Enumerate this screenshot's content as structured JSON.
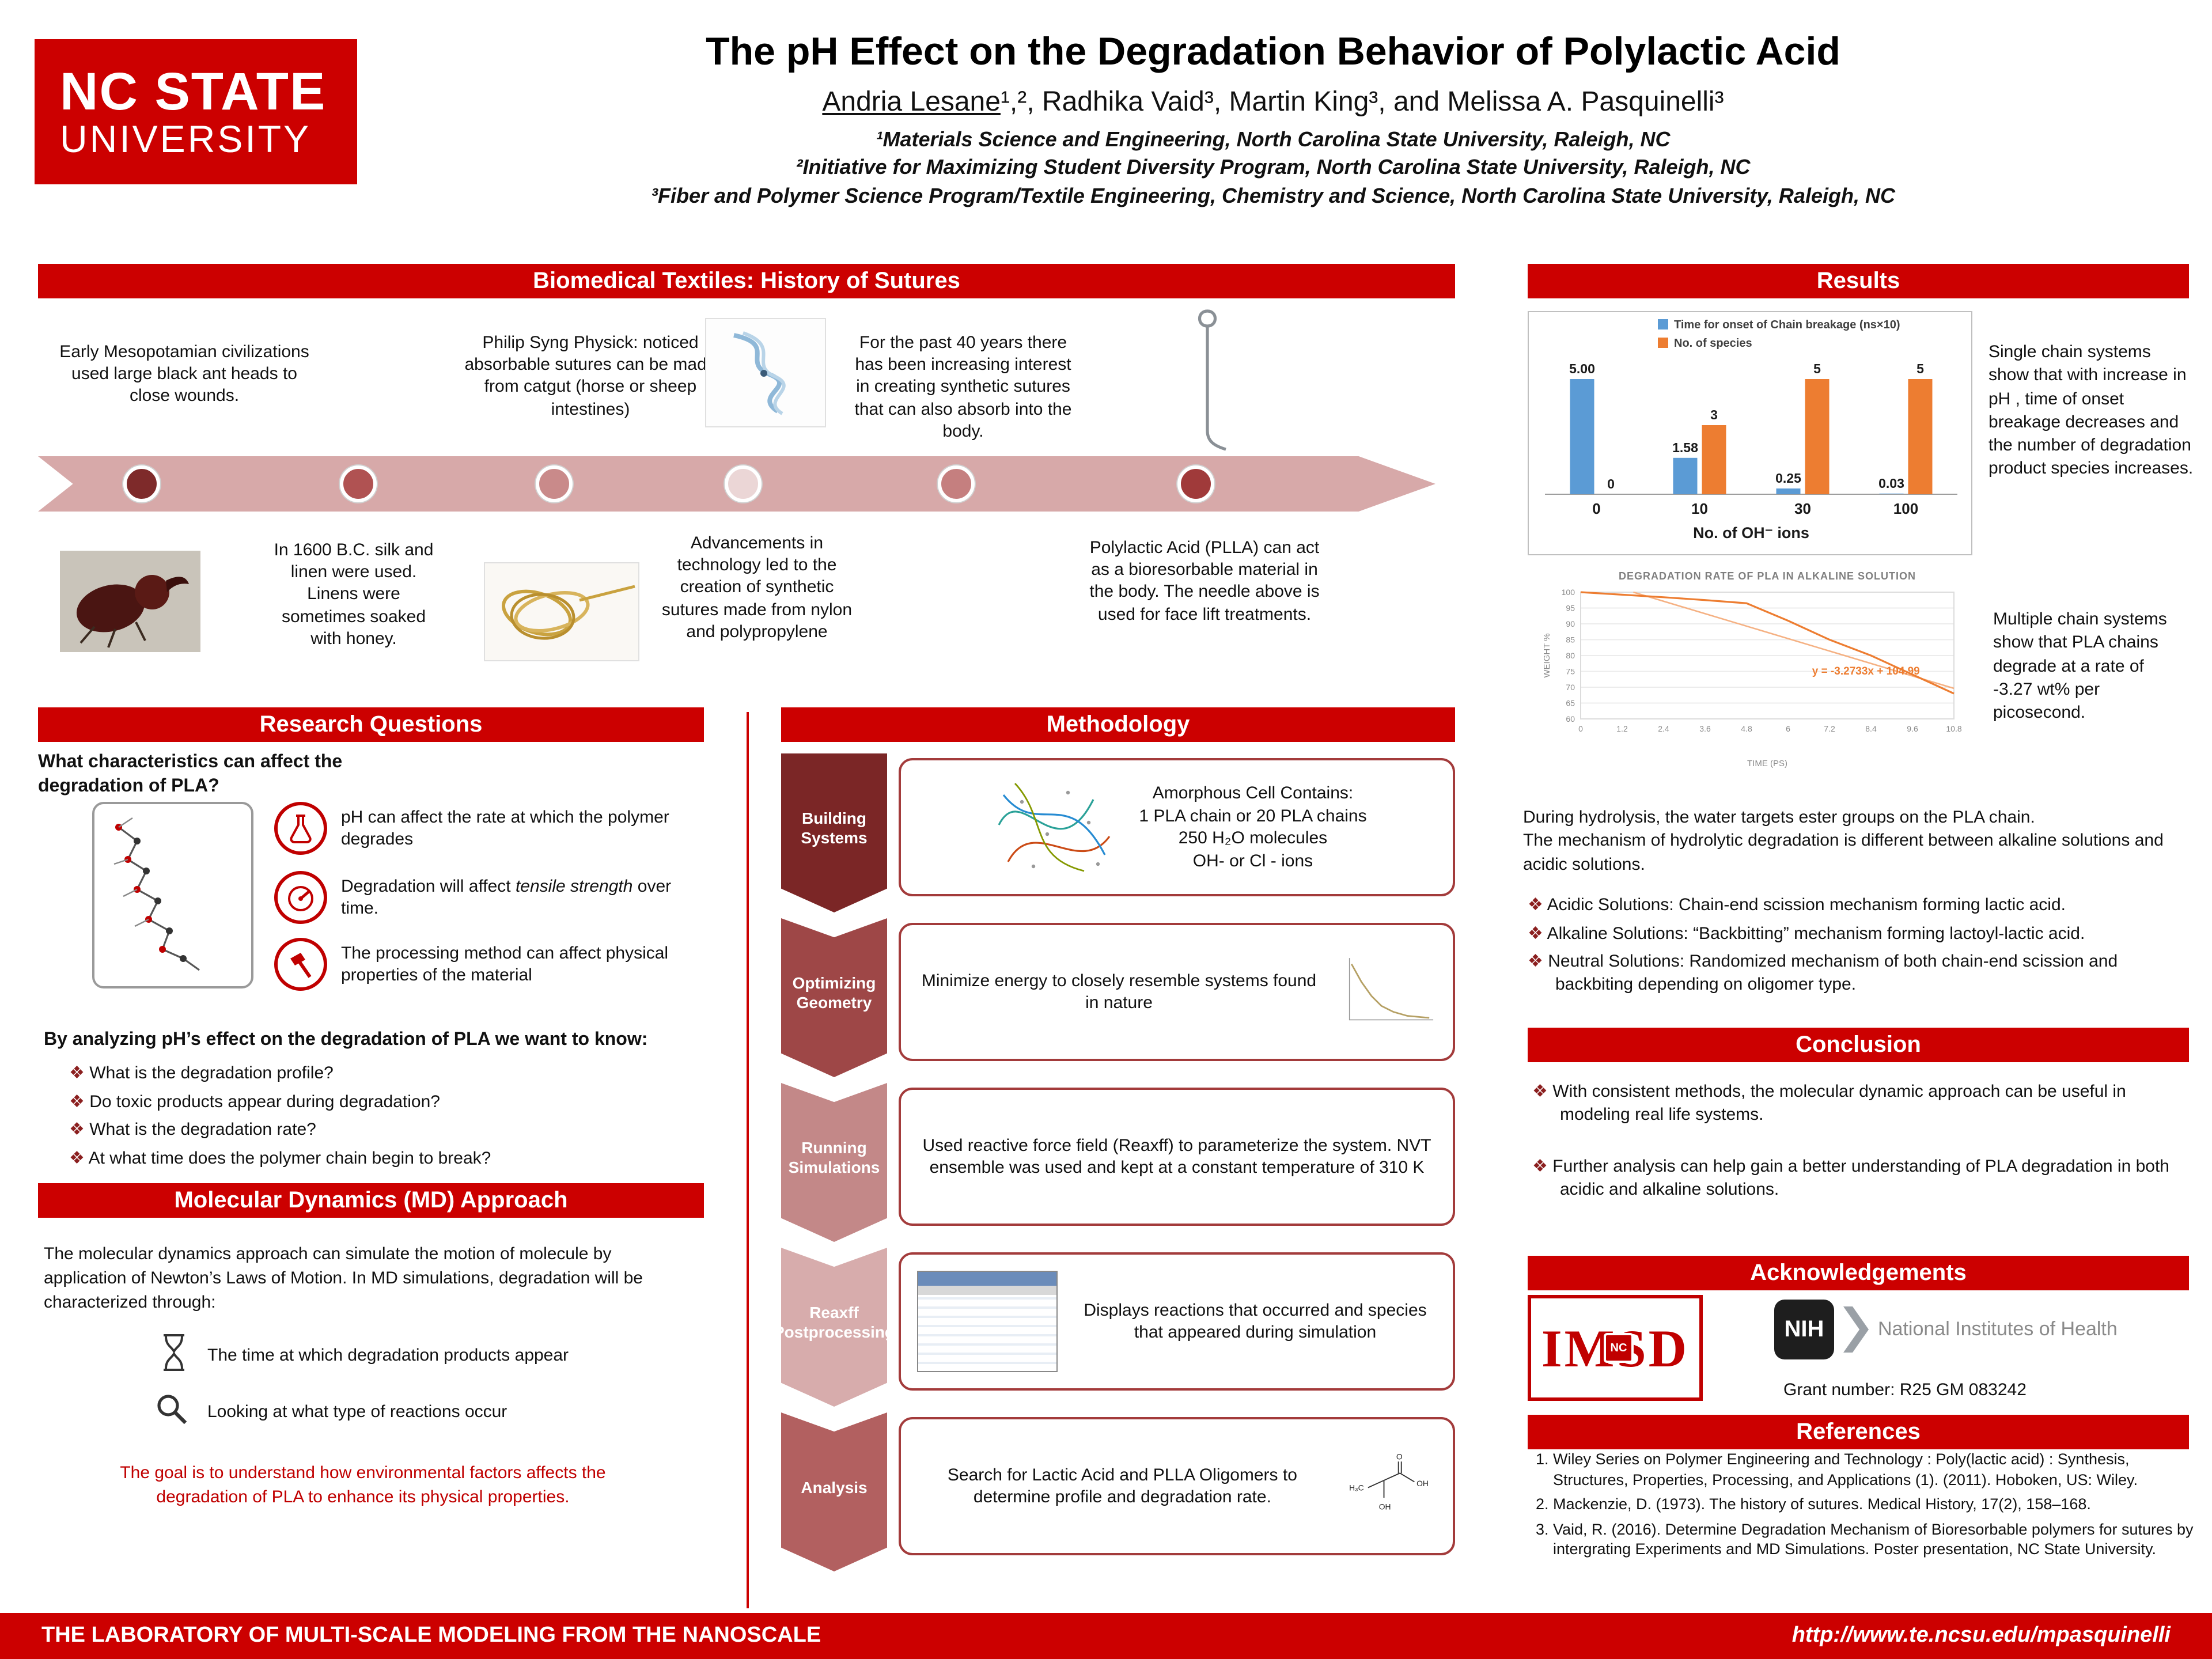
{
  "accent_color": "#CC0000",
  "header": {
    "logo": {
      "line1": "NC STATE",
      "line2": "UNIVERSITY"
    },
    "title": "The pH Effect on the Degradation Behavior of Polylactic Acid",
    "author_lead": "Andria Lesane",
    "authors_rest": "¹,², Radhika Vaid³, Martin King³, and Melissa A. Pasquinelli³",
    "affiliations": [
      "¹Materials Science and Engineering, North Carolina State University, Raleigh, NC",
      "²Initiative for Maximizing Student Diversity Program, North Carolina State University, Raleigh, NC",
      "³Fiber and Polymer Science Program/Textile Engineering, Chemistry and Science, North Carolina State University, Raleigh, NC"
    ]
  },
  "history": {
    "heading": "Biomedical Textiles: History of Sutures",
    "items_above": [
      "Early Mesopotamian civilizations used large black ant heads to close wounds.",
      "Philip Syng Physick: noticed absorbable sutures can be made from catgut (horse or sheep intestines)",
      "For the past 40 years there has been increasing interest in creating synthetic sutures that can also absorb into the body."
    ],
    "items_below": [
      "In 1600 B.C. silk and linen were used. Linens were sometimes soaked with honey.",
      "Advancements in technology led to the creation of synthetic sutures made from nylon and polypropylene",
      "Polylactic Acid (PLLA) can act as a bioresorbable material in the body. The needle above is used for face lift treatments."
    ]
  },
  "research": {
    "heading": "Research Questions",
    "lead_question": "What characteristics can affect the degradation of PLA?",
    "factors": [
      {
        "icon": "beaker-icon",
        "text": "pH can affect the rate at which the polymer degrades"
      },
      {
        "icon": "gauge-icon",
        "pre": "Degradation will affect ",
        "em": "tensile strength",
        "post": " over time."
      },
      {
        "icon": "hammer-icon",
        "text": "The processing method can affect physical properties of the material"
      }
    ],
    "analysis_lead": "By analyzing pH’s effect on the degradation of PLA we want to know:",
    "questions": [
      "What is the degradation profile?",
      "Do toxic products appear during degradation?",
      "What is the degradation rate?",
      "At what time does the polymer chain begin to break?"
    ]
  },
  "md": {
    "heading": "Molecular Dynamics (MD) Approach",
    "intro": "The molecular dynamics approach can simulate the motion of molecule by application of Newton’s Laws of Motion. In MD simulations, degradation will be characterized through:",
    "points": [
      "The time at which degradation products appear",
      "Looking at what type of reactions occur"
    ],
    "goal": "The goal is to understand how environmental factors affects the degradation of PLA  to enhance its physical properties."
  },
  "methodology": {
    "heading": "Methodology",
    "steps": [
      {
        "label": "Building Systems",
        "text": "Amorphous Cell Contains:\n1 PLA chain or 20 PLA chains\n250 H₂O molecules\nOH- or Cl - ions"
      },
      {
        "label": "Optimizing Geometry",
        "text": "Minimize energy to closely resemble systems found in nature"
      },
      {
        "label": "Running Simulations",
        "text": "Used reactive force field (Reaxff) to parameterize the system. NVT ensemble was used and kept at a constant temperature of 310 K"
      },
      {
        "label": "Reaxff Postprocessing",
        "text": "Displays reactions that occurred and species that appeared during simulation"
      },
      {
        "label": "Analysis",
        "text": "Search for Lactic Acid and PLLA Oligomers to determine profile and degradation rate."
      }
    ],
    "lactic_acid_labels": {
      "ch3": "H₃C",
      "o": "O",
      "oh1": "OH",
      "oh2": "OH"
    }
  },
  "results": {
    "heading": "Results",
    "single_note": "Single chain systems show that with increase in pH , time of onset breakage decreases and the number of degradation product species increases.",
    "multi_note": "Multiple chain systems show that PLA chains degrade at a rate of\n-3.27 wt% per picosecond.",
    "hydrolysis": "During hydrolysis, the water targets ester groups on the PLA chain.\nThe mechanism of  hydrolytic degradation is different between alkaline solutions and acidic solutions.",
    "mechanisms": [
      "Acidic Solutions: Chain-end scission mechanism forming lactic acid.",
      "Alkaline Solutions: “Backbitting” mechanism forming lactoyl-lactic acid.",
      "Neutral Solutions: Randomized mechanism of both chain-end scission and backbiting depending on oligomer type."
    ]
  },
  "conclusion": {
    "heading": "Conclusion",
    "bullets": [
      "With consistent methods, the molecular dynamic approach can be useful in modeling real life systems.",
      "Further analysis can help gain a better understanding of PLA degradation in both acidic and alkaline solutions."
    ]
  },
  "acknowledgements": {
    "heading": "Acknowledgements",
    "imsd": "IMSD",
    "emblem": "NC",
    "nih_mark": "NIH",
    "nih_name": "National Institutes of Health",
    "grant": "Grant number: R25 GM 083242"
  },
  "references": {
    "heading": "References",
    "items": [
      "Wiley Series on Polymer Engineering and Technology : Poly(lactic acid) : Synthesis, Structures, Properties, Processing, and Applications (1). (2011). Hoboken, US: Wiley.",
      "Mackenzie, D. (1973). The history of sutures. Medical History, 17(2), 158–168.",
      "Vaid, R. (2016). Determine Degradation Mechanism of Bioresorbable polymers for sutures by intergrating Experiments and MD Simulations. Poster presentation, NC State University."
    ]
  },
  "footer": {
    "left": "THE LABORATORY OF MULTI-SCALE MODELING FROM THE NANOSCALE",
    "right": "http://www.te.ncsu.edu/mpasquinelli"
  },
  "chart_data": [
    {
      "type": "bar",
      "title": "",
      "categories": [
        "0",
        "10",
        "30",
        "100"
      ],
      "series": [
        {
          "name": "Time for onset of Chain breakage (ns×10)",
          "color": "#5B9BD5",
          "values": [
            5.0,
            1.58,
            0.25,
            0.03
          ],
          "labels": [
            "5.00",
            "1.58",
            "0.25",
            "0.03"
          ]
        },
        {
          "name": "No. of species",
          "color": "#ED7D31",
          "values": [
            0,
            3,
            5,
            5
          ],
          "labels": [
            "0",
            "3",
            "5",
            "5"
          ]
        }
      ],
      "xlabel": "No. of OH⁻ ions",
      "ylabel": "",
      "ylim": [
        0,
        5.5
      ],
      "grid": false,
      "legend_position": "top"
    },
    {
      "type": "line",
      "title": "DEGRADATION RATE OF PLA IN ALKALINE SOLUTION",
      "x": [
        0,
        1.2,
        2.4,
        3.6,
        4.8,
        6,
        7.2,
        8.4,
        9.6,
        10.8
      ],
      "series": [
        {
          "name": "PLA weight %",
          "color": "#ED7D31",
          "values": [
            100,
            99.2,
            98.4,
            97.5,
            96.5,
            91,
            85,
            80,
            74,
            68
          ]
        }
      ],
      "trendline": {
        "equation": "y = -3.2733x + 104.99",
        "slope": -3.2733,
        "intercept": 104.99,
        "color": "#F5B183"
      },
      "xlabel": "TIME (PS)",
      "ylabel": "WEIGHT %",
      "ylim": [
        60,
        100
      ],
      "yticks": [
        100,
        95,
        90,
        85,
        80,
        75,
        70,
        65,
        60
      ],
      "xticks": [
        0,
        1.2,
        2.4,
        3.6,
        4.8,
        6,
        7.2,
        8.4,
        9.6,
        10.8
      ],
      "grid": true,
      "legend_position": "none"
    }
  ]
}
